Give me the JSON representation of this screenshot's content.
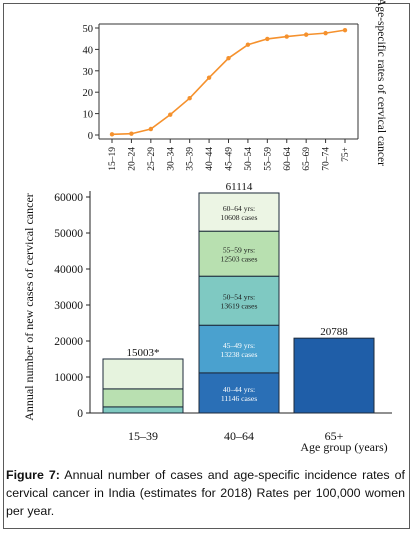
{
  "chart_data": [
    {
      "type": "line",
      "x": [
        "15–19",
        "20–24",
        "25–29",
        "30–34",
        "35–39",
        "40–44",
        "45–49",
        "50–54",
        "55–59",
        "60–64",
        "65–69",
        "70–74",
        "75+"
      ],
      "series": [
        {
          "values": [
            0.3,
            0.6,
            2.8,
            9.5,
            17.2,
            26.8,
            35.9,
            42.2,
            44.9,
            46.0,
            46.9,
            47.6,
            49.0
          ]
        }
      ],
      "ylabel": "Age-specific rates of cervical cancer",
      "ylim": [
        0,
        50
      ],
      "yticks": [
        0,
        10,
        20,
        30,
        40,
        50
      ],
      "grid": false,
      "color": "#f5912d"
    },
    {
      "type": "bar",
      "stacked": true,
      "categories": [
        "15–39",
        "40–64",
        "65+"
      ],
      "totals": [
        "15003*",
        "61114",
        "20788"
      ],
      "total_values": [
        15003,
        61114,
        20788
      ],
      "stacks": [
        {
          "segments": [
            {
              "value": 1700,
              "color": "#7fc9c0",
              "label": ""
            },
            {
              "value": 5000,
              "color": "#b9e0b1",
              "label": ""
            },
            {
              "value": 8303,
              "color": "#e6f3de",
              "label": ""
            }
          ]
        },
        {
          "segments": [
            {
              "value": 11146,
              "color": "#2a6fb6",
              "label": [
                "40–44 yrs:",
                "11146 cases"
              ]
            },
            {
              "value": 13238,
              "color": "#4aa1cf",
              "label": [
                "45–49 yrs:",
                "13238 cases"
              ]
            },
            {
              "value": 13619,
              "color": "#7fc9c2",
              "label": [
                "50–54 yrs:",
                "13619 cases"
              ]
            },
            {
              "value": 12503,
              "color": "#b8e0b0",
              "label": [
                "55–59 yrs:",
                "12503 cases"
              ]
            },
            {
              "value": 10608,
              "color": "#ecf5e4",
              "label": [
                "60–64 yrs:",
                "10608 cases"
              ]
            }
          ]
        },
        {
          "segments": [
            {
              "value": 20788,
              "color": "#1f5ea8",
              "label": ""
            }
          ]
        }
      ],
      "ylabel": "Annual number of new cases of cervical cancer",
      "xlabel": "Age group (years)",
      "ylim": [
        0,
        60000
      ],
      "yticks": [
        0,
        10000,
        20000,
        30000,
        40000,
        50000,
        60000
      ],
      "grid": false
    }
  ],
  "caption": {
    "label": "Figure 7:",
    "text": " Annual number of cases and age-specific incidence rates of cervical cancer in India (estimates for 2018) Rates per 100,000 women per year."
  }
}
